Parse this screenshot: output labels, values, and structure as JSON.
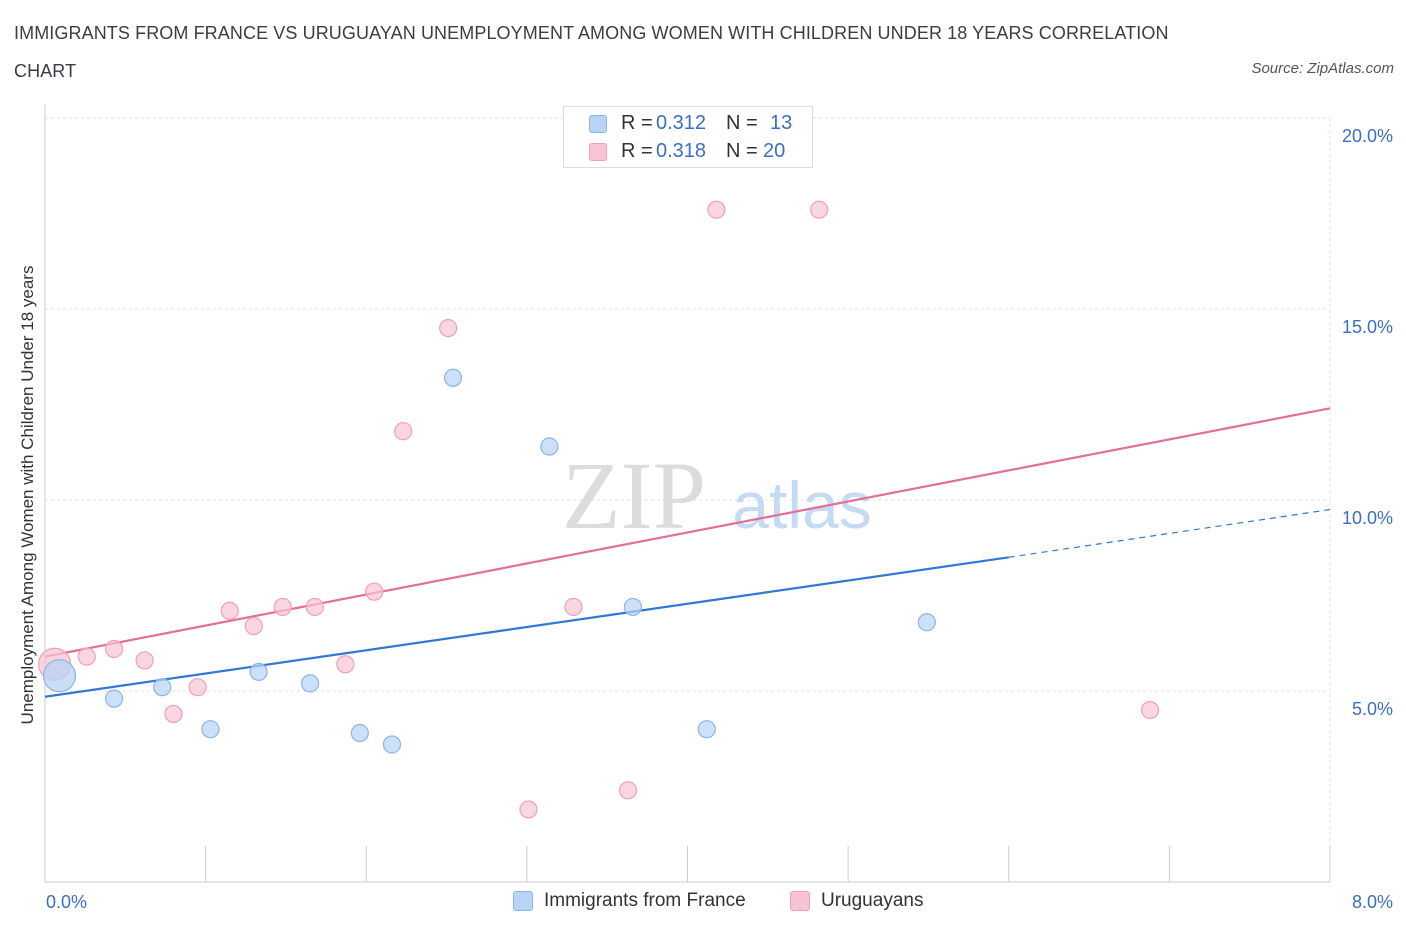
{
  "title": "IMMIGRANTS FROM FRANCE VS URUGUAYAN UNEMPLOYMENT AMONG WOMEN WITH CHILDREN UNDER 18 YEARS CORRELATION CHART",
  "source": "Source: ZipAtlas.com",
  "watermark": {
    "zip": "ZIP",
    "atlas": "atlas"
  },
  "colors": {
    "blue_fill": "#b8d3f6",
    "blue_stroke": "#8ab4ea",
    "blue_line": "#3377d6",
    "pink_fill": "#f8c4d4",
    "pink_stroke": "#efa0b8",
    "pink_line": "#e46e98",
    "axis_text": "#3a6fc4",
    "grid": "#e0e0e0"
  },
  "legend_top": [
    {
      "r_label": "R =",
      "r_value": "0.312",
      "n_label": "N =",
      "n_value": "13"
    },
    {
      "r_label": "R =",
      "r_value": "0.318",
      "n_label": "N =",
      "n_value": "20"
    }
  ],
  "legend_bottom": [
    {
      "label": "Immigrants from France"
    },
    {
      "label": "Uruguayans"
    }
  ],
  "chart_data": {
    "type": "scatter",
    "title": "IMMIGRANTS FROM FRANCE VS URUGUAYAN UNEMPLOYMENT AMONG WOMEN WITH CHILDREN UNDER 18 YEARS CORRELATION CHART",
    "xlabel": "",
    "ylabel": "Unemployment Among Women with Children Under 18 years",
    "xlim": [
      0,
      8
    ],
    "ylim": [
      0,
      20
    ],
    "x_tick_labels": [
      {
        "value": 0,
        "label": "0.0%"
      },
      {
        "value": 8,
        "label": "8.0%"
      }
    ],
    "y_tick_labels": [
      {
        "value": 5,
        "label": "5.0%"
      },
      {
        "value": 10,
        "label": "10.0%"
      },
      {
        "value": 15,
        "label": "15.0%"
      },
      {
        "value": 20,
        "label": "20.0%"
      }
    ],
    "series": [
      {
        "name": "Immigrants from France",
        "r": 0.312,
        "n": 13,
        "points": [
          {
            "x": 0.09,
            "y": 5.4,
            "big": true
          },
          {
            "x": 0.43,
            "y": 4.8
          },
          {
            "x": 0.73,
            "y": 5.1
          },
          {
            "x": 1.03,
            "y": 4.0
          },
          {
            "x": 1.33,
            "y": 5.5
          },
          {
            "x": 1.65,
            "y": 5.2
          },
          {
            "x": 1.96,
            "y": 3.9
          },
          {
            "x": 2.16,
            "y": 3.6
          },
          {
            "x": 2.54,
            "y": 13.2
          },
          {
            "x": 3.14,
            "y": 11.4
          },
          {
            "x": 3.66,
            "y": 7.2
          },
          {
            "x": 4.12,
            "y": 4.0
          },
          {
            "x": 5.49,
            "y": 6.8
          }
        ],
        "trend": {
          "x0": 0,
          "y0": 4.85,
          "x1": 6.0,
          "y1": 8.5,
          "dash_x1": 8.0,
          "dash_y1": 9.75
        }
      },
      {
        "name": "Uruguayans",
        "r": 0.318,
        "n": 20,
        "points": [
          {
            "x": 0.06,
            "y": 5.7,
            "big": true
          },
          {
            "x": 0.26,
            "y": 5.9
          },
          {
            "x": 0.43,
            "y": 6.1
          },
          {
            "x": 0.62,
            "y": 5.8
          },
          {
            "x": 0.8,
            "y": 4.4
          },
          {
            "x": 0.95,
            "y": 5.1
          },
          {
            "x": 1.15,
            "y": 7.1
          },
          {
            "x": 1.3,
            "y": 6.7
          },
          {
            "x": 1.48,
            "y": 7.2
          },
          {
            "x": 1.68,
            "y": 7.2
          },
          {
            "x": 1.87,
            "y": 5.7
          },
          {
            "x": 2.05,
            "y": 7.6
          },
          {
            "x": 2.23,
            "y": 11.8
          },
          {
            "x": 2.51,
            "y": 14.5
          },
          {
            "x": 3.01,
            "y": 1.9
          },
          {
            "x": 3.29,
            "y": 7.2
          },
          {
            "x": 3.63,
            "y": 2.4
          },
          {
            "x": 4.18,
            "y": 17.6
          },
          {
            "x": 4.82,
            "y": 17.6
          },
          {
            "x": 6.88,
            "y": 4.5
          }
        ],
        "trend": {
          "x0": 0,
          "y0": 5.9,
          "x1": 8.0,
          "y1": 12.4
        }
      }
    ]
  }
}
